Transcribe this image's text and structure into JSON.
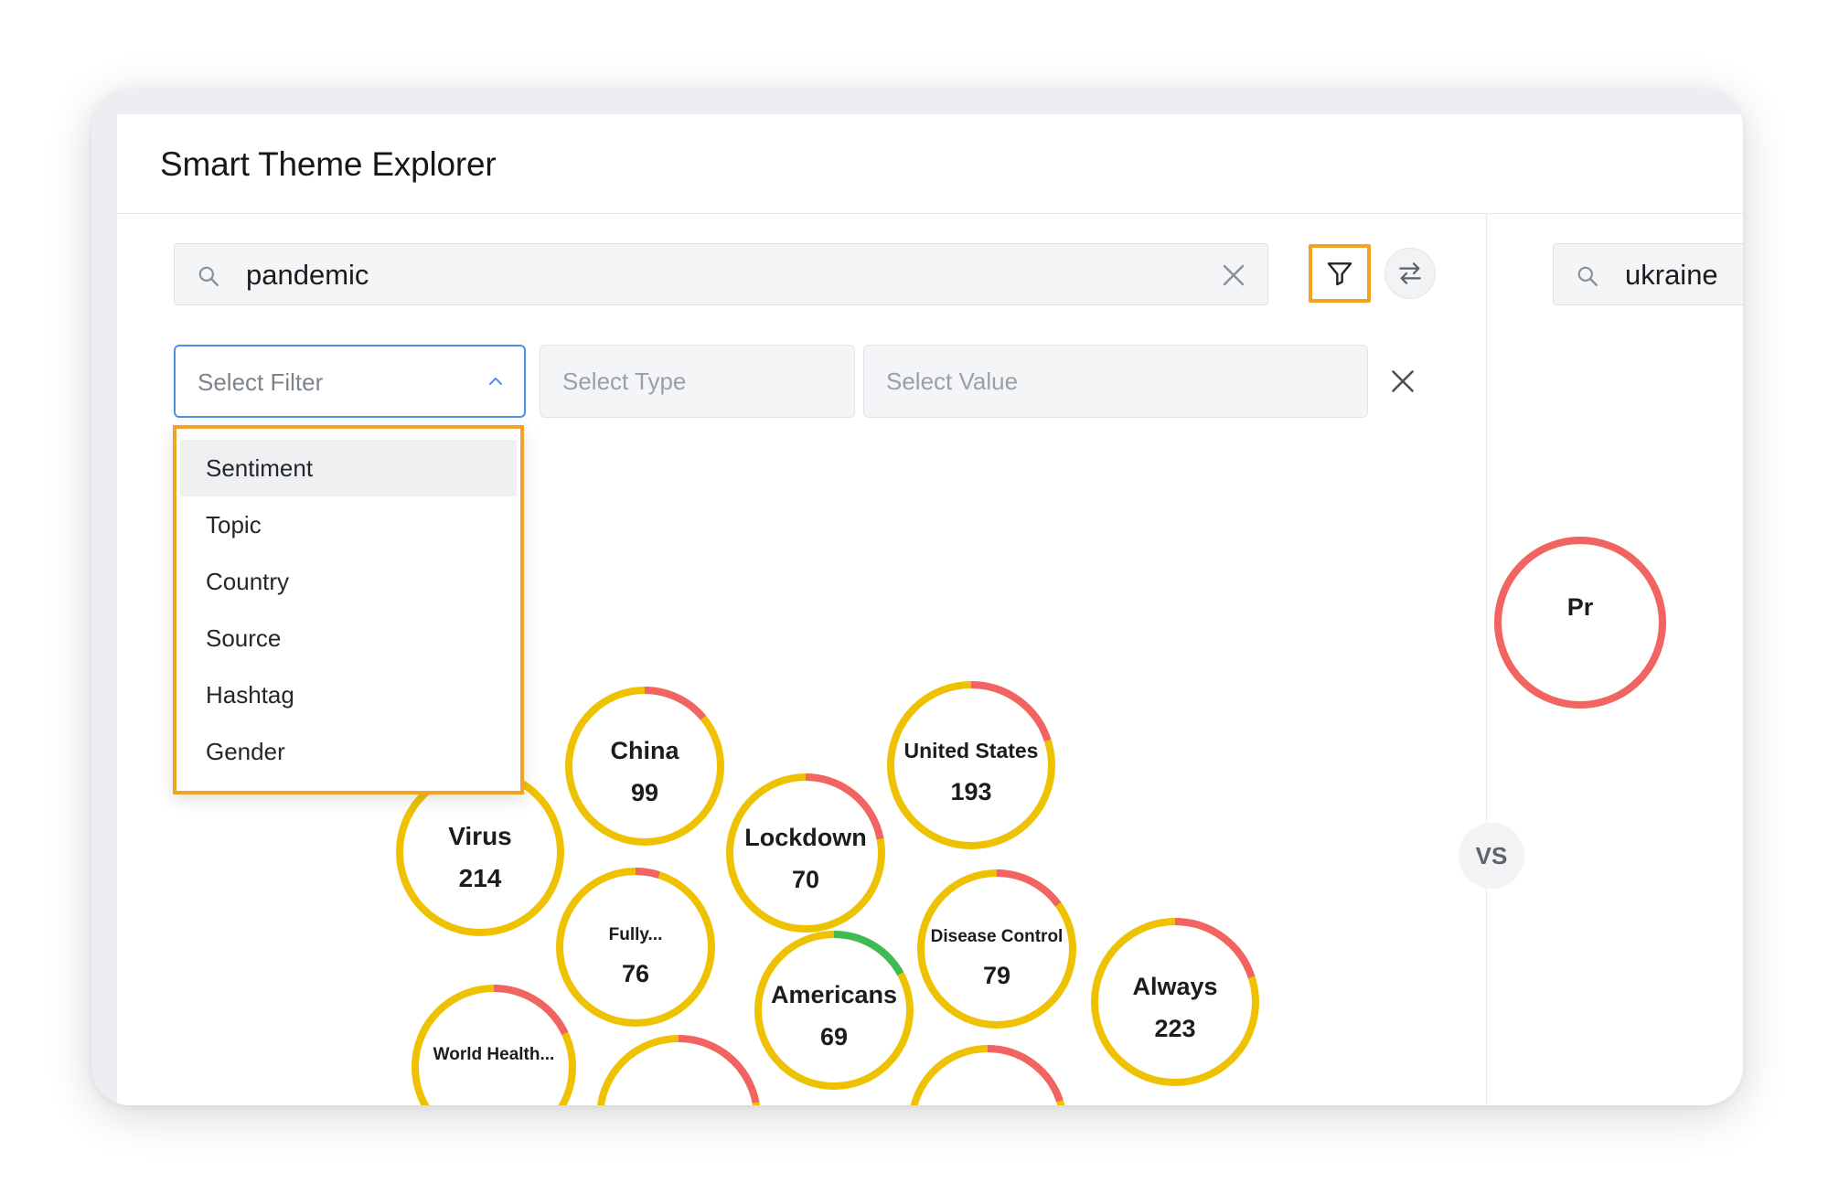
{
  "header": {
    "title": "Smart Theme Explorer"
  },
  "left_search": {
    "value": "pandemic"
  },
  "right_search": {
    "value": "ukraine"
  },
  "filters": {
    "filter_placeholder": "Select Filter",
    "type_placeholder": "Select Type",
    "value_placeholder": "Select Value"
  },
  "dropdown": {
    "items": [
      "Sentiment",
      "Topic",
      "Country",
      "Source",
      "Hashtag",
      "Gender"
    ],
    "highlighted": "Sentiment"
  },
  "vs_label": "VS",
  "colors": {
    "ring_neutral": "#eec200",
    "ring_negative": "#f26363",
    "ring_positive": "#3dbb55",
    "highlight": "#f2a224",
    "focus": "#4f8fe8"
  },
  "bubbles": [
    {
      "label": "Virus",
      "count": "214",
      "positive": 0.06,
      "negative": 0.0
    },
    {
      "label": "China",
      "count": "99",
      "positive": 0.0,
      "negative": 0.14
    },
    {
      "label": "Lockdown",
      "count": "70",
      "positive": 0.0,
      "negative": 0.22
    },
    {
      "label": "United States",
      "count": "193",
      "positive": 0.0,
      "negative": 0.2
    },
    {
      "label": "Fully...",
      "count": "76",
      "positive": 0.0,
      "negative": 0.05
    },
    {
      "label": "Disease Control",
      "count": "79",
      "positive": 0.0,
      "negative": 0.15
    },
    {
      "label": "Americans",
      "count": "69",
      "positive": 0.17,
      "negative": 0.0
    },
    {
      "label": "Always",
      "count": "223",
      "positive": 0.0,
      "negative": 0.2
    },
    {
      "label": "World Health...",
      "count": "",
      "positive": 0.0,
      "negative": 0.18
    },
    {
      "label": "",
      "count": "",
      "positive": 0.0,
      "negative": 0.22
    },
    {
      "label": "",
      "count": "",
      "positive": 0.0,
      "negative": 0.2
    }
  ],
  "right_bubbles": [
    {
      "label": "Pr",
      "count": "",
      "positive": 0.0,
      "negative": 1.0
    }
  ]
}
